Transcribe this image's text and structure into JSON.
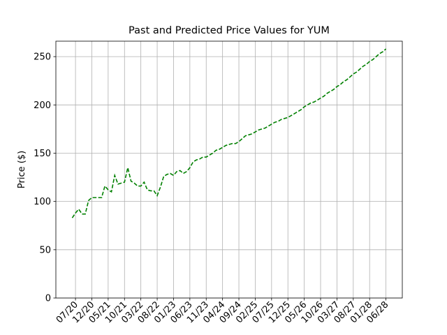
{
  "chart_data": {
    "type": "line",
    "title": "Past and Predicted Price Values for YUM",
    "y_label": "Price ($)",
    "x": [
      "06/20",
      "07/20",
      "08/20",
      "09/20",
      "10/20",
      "11/20",
      "12/20",
      "01/21",
      "02/21",
      "03/21",
      "04/21",
      "05/21",
      "06/21",
      "07/21",
      "08/21",
      "09/21",
      "10/21",
      "11/21",
      "12/21",
      "01/22",
      "02/22",
      "03/22",
      "04/22",
      "05/22",
      "06/22",
      "07/22",
      "08/22",
      "09/22",
      "10/22",
      "11/22",
      "12/22",
      "01/23",
      "02/23",
      "03/23",
      "04/23",
      "05/23",
      "06/23",
      "07/23",
      "08/23",
      "09/23",
      "10/23",
      "11/23",
      "12/23",
      "01/24",
      "02/24",
      "03/24",
      "04/24",
      "05/24",
      "06/24",
      "07/24",
      "08/24",
      "09/24",
      "10/24",
      "11/24",
      "12/24",
      "01/25",
      "02/25",
      "03/25",
      "04/25",
      "05/25",
      "06/25",
      "07/25",
      "08/25",
      "09/25",
      "10/25",
      "11/25",
      "12/25",
      "01/26",
      "02/26",
      "03/26",
      "04/26",
      "05/26",
      "06/26",
      "07/26",
      "08/26",
      "09/26",
      "10/26",
      "11/26",
      "12/26",
      "01/27",
      "02/27",
      "03/27",
      "04/27",
      "05/27",
      "06/27",
      "07/27",
      "08/27",
      "09/27",
      "10/27",
      "11/27",
      "12/27",
      "01/28",
      "02/28",
      "03/28",
      "04/28",
      "05/28",
      "06/28"
    ],
    "values": [
      83,
      88,
      92,
      87,
      87,
      101,
      104,
      104,
      104,
      104,
      116,
      112,
      110,
      127,
      118,
      119,
      120,
      135,
      121,
      119,
      116,
      116,
      120,
      112,
      111,
      111,
      106,
      115,
      126,
      128,
      129,
      127,
      131,
      132,
      129,
      131,
      135,
      141,
      143,
      144,
      146,
      146,
      148,
      150,
      153,
      154,
      156,
      158,
      159,
      160,
      160,
      162,
      165,
      168,
      169,
      170,
      172,
      174,
      175,
      176,
      178,
      180,
      182,
      183,
      185,
      186,
      187,
      189,
      191,
      193,
      195,
      198,
      200,
      202,
      203,
      205,
      207,
      209,
      212,
      214,
      216,
      219,
      221,
      224,
      226,
      229,
      232,
      234,
      237,
      240,
      242,
      245,
      247,
      250,
      253,
      255,
      258
    ],
    "color": "#008000",
    "line_style": "dashed",
    "xlim": [
      "01/20",
      "11/28"
    ],
    "xticks": [
      "07/20",
      "12/20",
      "05/21",
      "10/21",
      "03/22",
      "08/22",
      "01/23",
      "06/23",
      "11/23",
      "04/24",
      "09/24",
      "02/25",
      "07/25",
      "12/25",
      "05/26",
      "10/26",
      "03/27",
      "08/27",
      "01/28",
      "06/28"
    ],
    "ylim": [
      0,
      266
    ],
    "yticks": [
      0,
      50,
      100,
      150,
      200,
      250
    ],
    "grid": true
  }
}
